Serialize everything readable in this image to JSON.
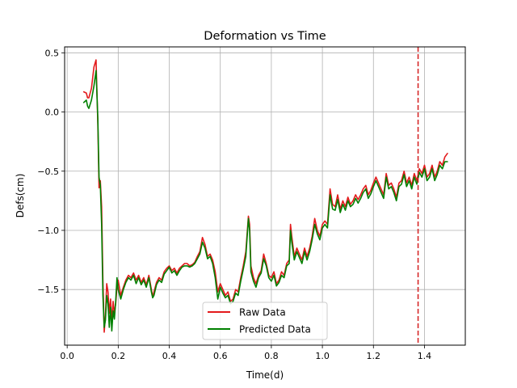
{
  "chart_data": {
    "type": "line",
    "title": "Deformation vs Time",
    "xlabel": "Time(d)",
    "ylabel": "Defs(cm)",
    "xlim": [
      -0.01,
      1.56
    ],
    "ylim": [
      -1.97,
      0.55
    ],
    "xticks": [
      0.0,
      0.2,
      0.4,
      0.6,
      0.8,
      1.0,
      1.2,
      1.4
    ],
    "xtick_labels": [
      "0.0",
      "0.2",
      "0.4",
      "0.6",
      "0.8",
      "1.0",
      "1.2",
      "1.4"
    ],
    "yticks": [
      0.5,
      0.0,
      -0.5,
      -1.0,
      -1.5
    ],
    "ytick_labels": [
      "0.5",
      "0.0",
      "−0.5",
      "−1.0",
      "−1.5"
    ],
    "grid": true,
    "legend_position": "bottom-center",
    "vline": {
      "x": 1.375,
      "color": "#d62728",
      "style": "dashed"
    },
    "series": [
      {
        "name": "Raw Data",
        "color": "#e31a1c",
        "points": [
          [
            0.065,
            0.17
          ],
          [
            0.075,
            0.16
          ],
          [
            0.08,
            0.12
          ],
          [
            0.085,
            0.12
          ],
          [
            0.095,
            0.2
          ],
          [
            0.105,
            0.38
          ],
          [
            0.113,
            0.44
          ],
          [
            0.12,
            -0.1
          ],
          [
            0.125,
            -0.64
          ],
          [
            0.13,
            -0.58
          ],
          [
            0.135,
            -0.8
          ],
          [
            0.14,
            -1.42
          ],
          [
            0.145,
            -1.86
          ],
          [
            0.15,
            -1.72
          ],
          [
            0.155,
            -1.45
          ],
          [
            0.16,
            -1.52
          ],
          [
            0.165,
            -1.7
          ],
          [
            0.17,
            -1.58
          ],
          [
            0.175,
            -1.78
          ],
          [
            0.18,
            -1.6
          ],
          [
            0.185,
            -1.7
          ],
          [
            0.19,
            -1.62
          ],
          [
            0.195,
            -1.48
          ],
          [
            0.2,
            -1.42
          ],
          [
            0.21,
            -1.55
          ],
          [
            0.22,
            -1.48
          ],
          [
            0.23,
            -1.42
          ],
          [
            0.24,
            -1.38
          ],
          [
            0.25,
            -1.4
          ],
          [
            0.26,
            -1.36
          ],
          [
            0.27,
            -1.42
          ],
          [
            0.28,
            -1.38
          ],
          [
            0.29,
            -1.44
          ],
          [
            0.3,
            -1.4
          ],
          [
            0.31,
            -1.46
          ],
          [
            0.32,
            -1.38
          ],
          [
            0.33,
            -1.5
          ],
          [
            0.335,
            -1.56
          ],
          [
            0.34,
            -1.52
          ],
          [
            0.35,
            -1.44
          ],
          [
            0.36,
            -1.4
          ],
          [
            0.37,
            -1.42
          ],
          [
            0.38,
            -1.35
          ],
          [
            0.39,
            -1.32
          ],
          [
            0.4,
            -1.3
          ],
          [
            0.41,
            -1.34
          ],
          [
            0.42,
            -1.32
          ],
          [
            0.43,
            -1.36
          ],
          [
            0.44,
            -1.32
          ],
          [
            0.45,
            -1.3
          ],
          [
            0.46,
            -1.28
          ],
          [
            0.47,
            -1.28
          ],
          [
            0.48,
            -1.3
          ],
          [
            0.49,
            -1.29
          ],
          [
            0.5,
            -1.27
          ],
          [
            0.51,
            -1.22
          ],
          [
            0.52,
            -1.18
          ],
          [
            0.53,
            -1.06
          ],
          [
            0.54,
            -1.12
          ],
          [
            0.55,
            -1.22
          ],
          [
            0.56,
            -1.2
          ],
          [
            0.57,
            -1.25
          ],
          [
            0.58,
            -1.35
          ],
          [
            0.59,
            -1.52
          ],
          [
            0.6,
            -1.45
          ],
          [
            0.61,
            -1.5
          ],
          [
            0.62,
            -1.55
          ],
          [
            0.63,
            -1.52
          ],
          [
            0.64,
            -1.6
          ],
          [
            0.65,
            -1.58
          ],
          [
            0.66,
            -1.5
          ],
          [
            0.67,
            -1.52
          ],
          [
            0.68,
            -1.4
          ],
          [
            0.69,
            -1.3
          ],
          [
            0.7,
            -1.18
          ],
          [
            0.71,
            -0.88
          ],
          [
            0.715,
            -0.95
          ],
          [
            0.72,
            -1.3
          ],
          [
            0.73,
            -1.4
          ],
          [
            0.74,
            -1.45
          ],
          [
            0.75,
            -1.38
          ],
          [
            0.76,
            -1.34
          ],
          [
            0.77,
            -1.2
          ],
          [
            0.78,
            -1.28
          ],
          [
            0.79,
            -1.38
          ],
          [
            0.8,
            -1.4
          ],
          [
            0.81,
            -1.35
          ],
          [
            0.82,
            -1.45
          ],
          [
            0.83,
            -1.42
          ],
          [
            0.84,
            -1.35
          ],
          [
            0.85,
            -1.38
          ],
          [
            0.86,
            -1.28
          ],
          [
            0.87,
            -1.25
          ],
          [
            0.875,
            -0.95
          ],
          [
            0.88,
            -1.05
          ],
          [
            0.89,
            -1.22
          ],
          [
            0.9,
            -1.15
          ],
          [
            0.91,
            -1.2
          ],
          [
            0.92,
            -1.25
          ],
          [
            0.93,
            -1.15
          ],
          [
            0.94,
            -1.22
          ],
          [
            0.95,
            -1.15
          ],
          [
            0.96,
            -1.05
          ],
          [
            0.97,
            -0.9
          ],
          [
            0.98,
            -1.0
          ],
          [
            0.99,
            -1.05
          ],
          [
            1.0,
            -0.95
          ],
          [
            1.01,
            -0.92
          ],
          [
            1.02,
            -0.95
          ],
          [
            1.03,
            -0.65
          ],
          [
            1.04,
            -0.78
          ],
          [
            1.05,
            -0.8
          ],
          [
            1.06,
            -0.7
          ],
          [
            1.07,
            -0.82
          ],
          [
            1.08,
            -0.75
          ],
          [
            1.09,
            -0.8
          ],
          [
            1.1,
            -0.72
          ],
          [
            1.11,
            -0.78
          ],
          [
            1.12,
            -0.75
          ],
          [
            1.13,
            -0.7
          ],
          [
            1.14,
            -0.74
          ],
          [
            1.15,
            -0.7
          ],
          [
            1.16,
            -0.65
          ],
          [
            1.17,
            -0.62
          ],
          [
            1.18,
            -0.7
          ],
          [
            1.19,
            -0.66
          ],
          [
            1.2,
            -0.6
          ],
          [
            1.21,
            -0.55
          ],
          [
            1.22,
            -0.6
          ],
          [
            1.23,
            -0.65
          ],
          [
            1.24,
            -0.7
          ],
          [
            1.25,
            -0.52
          ],
          [
            1.26,
            -0.62
          ],
          [
            1.27,
            -0.6
          ],
          [
            1.28,
            -0.65
          ],
          [
            1.29,
            -0.72
          ],
          [
            1.3,
            -0.6
          ],
          [
            1.31,
            -0.58
          ],
          [
            1.32,
            -0.5
          ],
          [
            1.33,
            -0.6
          ],
          [
            1.34,
            -0.55
          ],
          [
            1.35,
            -0.62
          ],
          [
            1.36,
            -0.52
          ],
          [
            1.37,
            -0.58
          ],
          [
            1.38,
            -0.48
          ],
          [
            1.39,
            -0.52
          ],
          [
            1.4,
            -0.45
          ],
          [
            1.41,
            -0.55
          ],
          [
            1.42,
            -0.52
          ],
          [
            1.43,
            -0.45
          ],
          [
            1.44,
            -0.55
          ],
          [
            1.45,
            -0.5
          ],
          [
            1.46,
            -0.42
          ],
          [
            1.47,
            -0.45
          ],
          [
            1.48,
            -0.38
          ],
          [
            1.49,
            -0.35
          ]
        ]
      },
      {
        "name": "Predicted Data",
        "color": "#008000",
        "points": [
          [
            0.065,
            0.08
          ],
          [
            0.075,
            0.1
          ],
          [
            0.08,
            0.05
          ],
          [
            0.085,
            0.03
          ],
          [
            0.095,
            0.1
          ],
          [
            0.105,
            0.22
          ],
          [
            0.113,
            0.35
          ],
          [
            0.12,
            -0.05
          ],
          [
            0.125,
            -0.55
          ],
          [
            0.13,
            -0.62
          ],
          [
            0.135,
            -0.95
          ],
          [
            0.14,
            -1.55
          ],
          [
            0.145,
            -1.82
          ],
          [
            0.15,
            -1.76
          ],
          [
            0.155,
            -1.55
          ],
          [
            0.16,
            -1.62
          ],
          [
            0.165,
            -1.82
          ],
          [
            0.17,
            -1.65
          ],
          [
            0.175,
            -1.85
          ],
          [
            0.18,
            -1.68
          ],
          [
            0.185,
            -1.75
          ],
          [
            0.19,
            -1.6
          ],
          [
            0.195,
            -1.4
          ],
          [
            0.2,
            -1.5
          ],
          [
            0.21,
            -1.58
          ],
          [
            0.22,
            -1.5
          ],
          [
            0.23,
            -1.44
          ],
          [
            0.24,
            -1.4
          ],
          [
            0.25,
            -1.42
          ],
          [
            0.26,
            -1.38
          ],
          [
            0.27,
            -1.45
          ],
          [
            0.28,
            -1.4
          ],
          [
            0.29,
            -1.46
          ],
          [
            0.3,
            -1.42
          ],
          [
            0.31,
            -1.48
          ],
          [
            0.32,
            -1.4
          ],
          [
            0.33,
            -1.52
          ],
          [
            0.335,
            -1.57
          ],
          [
            0.34,
            -1.55
          ],
          [
            0.35,
            -1.46
          ],
          [
            0.36,
            -1.42
          ],
          [
            0.37,
            -1.44
          ],
          [
            0.38,
            -1.37
          ],
          [
            0.39,
            -1.34
          ],
          [
            0.4,
            -1.31
          ],
          [
            0.41,
            -1.36
          ],
          [
            0.42,
            -1.34
          ],
          [
            0.43,
            -1.38
          ],
          [
            0.44,
            -1.34
          ],
          [
            0.45,
            -1.31
          ],
          [
            0.46,
            -1.3
          ],
          [
            0.47,
            -1.3
          ],
          [
            0.48,
            -1.31
          ],
          [
            0.49,
            -1.3
          ],
          [
            0.5,
            -1.28
          ],
          [
            0.51,
            -1.24
          ],
          [
            0.52,
            -1.2
          ],
          [
            0.53,
            -1.1
          ],
          [
            0.54,
            -1.15
          ],
          [
            0.55,
            -1.24
          ],
          [
            0.56,
            -1.22
          ],
          [
            0.57,
            -1.28
          ],
          [
            0.58,
            -1.4
          ],
          [
            0.59,
            -1.58
          ],
          [
            0.6,
            -1.48
          ],
          [
            0.61,
            -1.53
          ],
          [
            0.62,
            -1.57
          ],
          [
            0.63,
            -1.55
          ],
          [
            0.64,
            -1.62
          ],
          [
            0.65,
            -1.6
          ],
          [
            0.66,
            -1.53
          ],
          [
            0.67,
            -1.55
          ],
          [
            0.68,
            -1.43
          ],
          [
            0.69,
            -1.33
          ],
          [
            0.7,
            -1.22
          ],
          [
            0.71,
            -0.9
          ],
          [
            0.715,
            -1.0
          ],
          [
            0.72,
            -1.35
          ],
          [
            0.73,
            -1.43
          ],
          [
            0.74,
            -1.48
          ],
          [
            0.75,
            -1.4
          ],
          [
            0.76,
            -1.36
          ],
          [
            0.77,
            -1.24
          ],
          [
            0.78,
            -1.3
          ],
          [
            0.79,
            -1.4
          ],
          [
            0.8,
            -1.43
          ],
          [
            0.81,
            -1.38
          ],
          [
            0.82,
            -1.47
          ],
          [
            0.83,
            -1.44
          ],
          [
            0.84,
            -1.38
          ],
          [
            0.85,
            -1.4
          ],
          [
            0.86,
            -1.3
          ],
          [
            0.87,
            -1.28
          ],
          [
            0.875,
            -1.0
          ],
          [
            0.88,
            -1.1
          ],
          [
            0.89,
            -1.25
          ],
          [
            0.9,
            -1.18
          ],
          [
            0.91,
            -1.23
          ],
          [
            0.92,
            -1.28
          ],
          [
            0.93,
            -1.18
          ],
          [
            0.94,
            -1.25
          ],
          [
            0.95,
            -1.18
          ],
          [
            0.96,
            -1.08
          ],
          [
            0.97,
            -0.95
          ],
          [
            0.98,
            -1.03
          ],
          [
            0.99,
            -1.08
          ],
          [
            1.0,
            -0.98
          ],
          [
            1.01,
            -0.95
          ],
          [
            1.02,
            -0.98
          ],
          [
            1.03,
            -0.7
          ],
          [
            1.04,
            -0.82
          ],
          [
            1.05,
            -0.83
          ],
          [
            1.06,
            -0.74
          ],
          [
            1.07,
            -0.85
          ],
          [
            1.08,
            -0.78
          ],
          [
            1.09,
            -0.83
          ],
          [
            1.1,
            -0.75
          ],
          [
            1.11,
            -0.8
          ],
          [
            1.12,
            -0.78
          ],
          [
            1.13,
            -0.73
          ],
          [
            1.14,
            -0.77
          ],
          [
            1.15,
            -0.73
          ],
          [
            1.16,
            -0.68
          ],
          [
            1.17,
            -0.65
          ],
          [
            1.18,
            -0.73
          ],
          [
            1.19,
            -0.69
          ],
          [
            1.2,
            -0.63
          ],
          [
            1.21,
            -0.58
          ],
          [
            1.22,
            -0.63
          ],
          [
            1.23,
            -0.68
          ],
          [
            1.24,
            -0.73
          ],
          [
            1.25,
            -0.55
          ],
          [
            1.26,
            -0.65
          ],
          [
            1.27,
            -0.63
          ],
          [
            1.28,
            -0.68
          ],
          [
            1.29,
            -0.75
          ],
          [
            1.3,
            -0.63
          ],
          [
            1.31,
            -0.61
          ],
          [
            1.32,
            -0.53
          ],
          [
            1.33,
            -0.63
          ],
          [
            1.34,
            -0.58
          ],
          [
            1.35,
            -0.65
          ],
          [
            1.36,
            -0.55
          ],
          [
            1.37,
            -0.61
          ],
          [
            1.38,
            -0.51
          ],
          [
            1.39,
            -0.55
          ],
          [
            1.4,
            -0.48
          ],
          [
            1.41,
            -0.58
          ],
          [
            1.42,
            -0.55
          ],
          [
            1.43,
            -0.48
          ],
          [
            1.44,
            -0.58
          ],
          [
            1.45,
            -0.53
          ],
          [
            1.46,
            -0.45
          ],
          [
            1.47,
            -0.48
          ],
          [
            1.48,
            -0.42
          ],
          [
            1.49,
            -0.42
          ]
        ]
      }
    ]
  }
}
